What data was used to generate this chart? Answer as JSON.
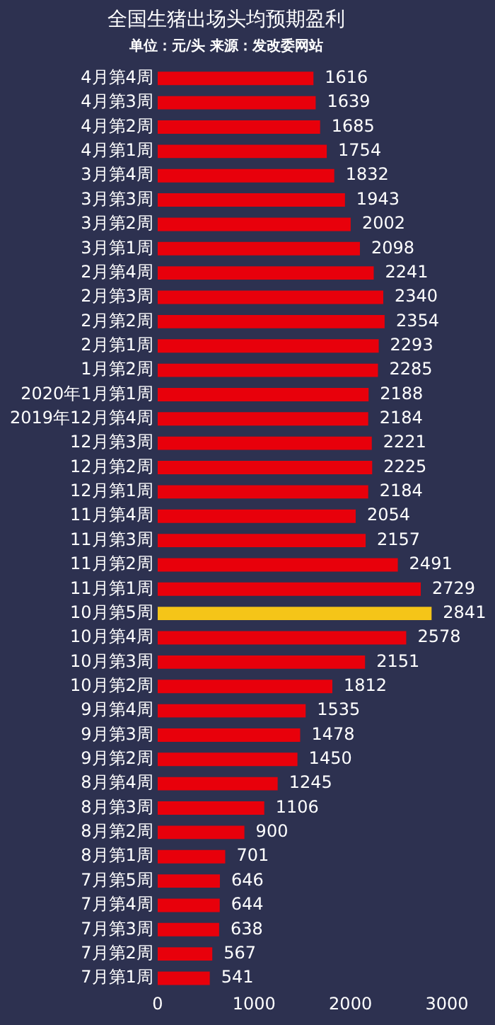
{
  "chart_data": {
    "type": "bar",
    "orientation": "horizontal",
    "title": "全国生猪出场头均预期盈利",
    "subtitle": "单位：元/头 来源：发改委网站",
    "categories": [
      "4月第4周",
      "4月第3周",
      "4月第2周",
      "4月第1周",
      "3月第4周",
      "3月第3周",
      "3月第2周",
      "3月第1周",
      "2月第4周",
      "2月第3周",
      "2月第2周",
      "2月第1周",
      "1月第2周",
      "2020年1月第1周",
      "2019年12月第4周",
      "12月第3周",
      "12月第2周",
      "12月第1周",
      "11月第4周",
      "11月第3周",
      "11月第2周",
      "11月第1周",
      "10月第5周",
      "10月第4周",
      "10月第3周",
      "10月第2周",
      "9月第4周",
      "9月第3周",
      "9月第2周",
      "8月第4周",
      "8月第3周",
      "8月第2周",
      "8月第1周",
      "7月第5周",
      "7月第4周",
      "7月第3周",
      "7月第2周",
      "7月第1周"
    ],
    "values": [
      1616,
      1639,
      1685,
      1754,
      1832,
      1943,
      2002,
      2098,
      2241,
      2340,
      2354,
      2293,
      2285,
      2188,
      2184,
      2221,
      2225,
      2184,
      2054,
      2157,
      2491,
      2729,
      2841,
      2578,
      2151,
      1812,
      1535,
      1478,
      1450,
      1245,
      1106,
      900,
      701,
      646,
      644,
      638,
      567,
      541
    ],
    "colors": [
      "#e8000b",
      "#e8000b",
      "#e8000b",
      "#e8000b",
      "#e8000b",
      "#e8000b",
      "#e8000b",
      "#e8000b",
      "#e8000b",
      "#e8000b",
      "#e8000b",
      "#e8000b",
      "#e8000b",
      "#e8000b",
      "#e8000b",
      "#e8000b",
      "#e8000b",
      "#e8000b",
      "#e8000b",
      "#e8000b",
      "#e8000b",
      "#e8000b",
      "#f5c518",
      "#e8000b",
      "#e8000b",
      "#e8000b",
      "#e8000b",
      "#e8000b",
      "#e8000b",
      "#e8000b",
      "#e8000b",
      "#e8000b",
      "#e8000b",
      "#e8000b",
      "#e8000b",
      "#e8000b",
      "#e8000b",
      "#e8000b"
    ],
    "xlim": [
      0,
      3000
    ],
    "xticks": [
      0,
      1000,
      2000,
      3000
    ],
    "data_labels": true,
    "grid": false
  }
}
